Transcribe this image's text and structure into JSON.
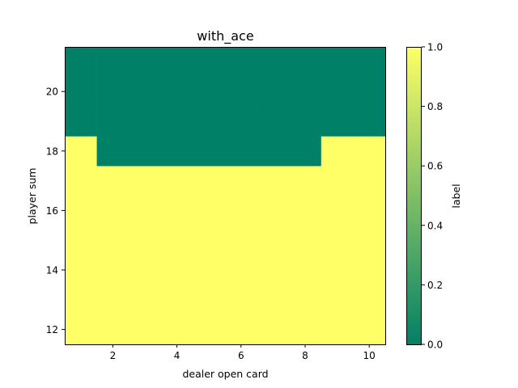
{
  "chart_data": {
    "type": "heatmap",
    "title": "with_ace",
    "xlabel": "dealer open card",
    "ylabel": "player sum",
    "x": [
      1,
      2,
      3,
      4,
      5,
      6,
      7,
      8,
      9,
      10
    ],
    "y": [
      12,
      13,
      14,
      15,
      16,
      17,
      18,
      19,
      20,
      21
    ],
    "xlim": [
      0.5,
      10.5
    ],
    "ylim": [
      11.5,
      21.5
    ],
    "xticks": [
      2,
      4,
      6,
      8,
      10
    ],
    "yticks": [
      12,
      14,
      16,
      18,
      20
    ],
    "values": [
      [
        1,
        1,
        1,
        1,
        1,
        1,
        1,
        1,
        1,
        1
      ],
      [
        1,
        1,
        1,
        1,
        1,
        1,
        1,
        1,
        1,
        1
      ],
      [
        1,
        1,
        1,
        1,
        1,
        1,
        1,
        1,
        1,
        1
      ],
      [
        1,
        1,
        1,
        1,
        1,
        1,
        1,
        1,
        1,
        1
      ],
      [
        1,
        1,
        1,
        1,
        1,
        1,
        1,
        1,
        1,
        1
      ],
      [
        1,
        1,
        1,
        1,
        1,
        1,
        1,
        1,
        1,
        1
      ],
      [
        1,
        0,
        0,
        0,
        0,
        0,
        0,
        0,
        1,
        1
      ],
      [
        0,
        0,
        0,
        0,
        0,
        0,
        0,
        0,
        0,
        0
      ],
      [
        0,
        0,
        0,
        0,
        0,
        0,
        0,
        0,
        0,
        0
      ],
      [
        0,
        0,
        0,
        0,
        0,
        0,
        0,
        0,
        0,
        0
      ]
    ],
    "colorbar": {
      "label": "label",
      "range": [
        0.0,
        1.0
      ],
      "ticks": [
        "0.0",
        "0.2",
        "0.4",
        "0.6",
        "0.8",
        "1.0"
      ]
    },
    "colormap": [
      "#008066",
      "#FFFF66"
    ],
    "grid": false,
    "legend": "none"
  }
}
